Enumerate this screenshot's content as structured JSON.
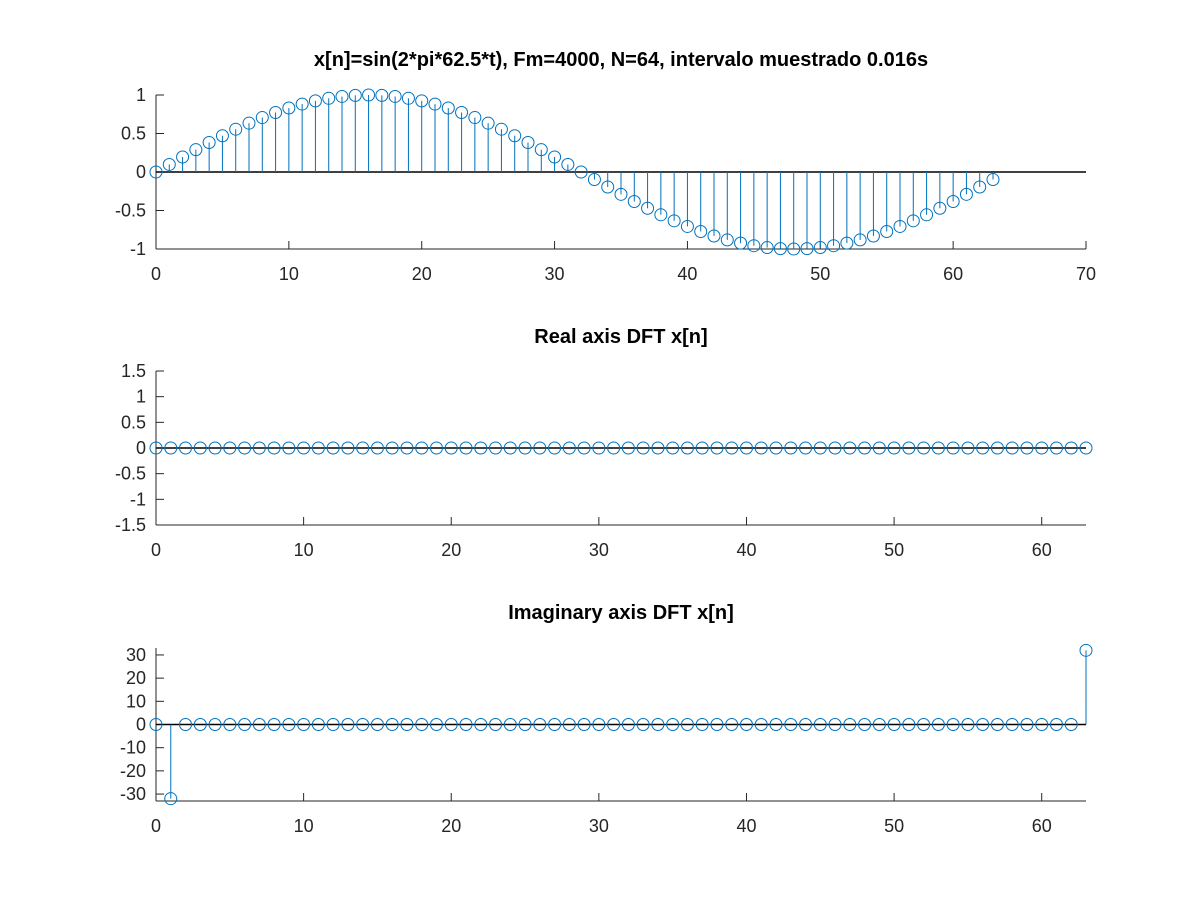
{
  "chart_data": [
    {
      "type": "stem",
      "title": "x[n]=sin(2*pi*62.5*t), Fm=4000, N=64, intervalo muestrado 0.016s",
      "xlabel": "",
      "ylabel": "",
      "xlim": [
        0,
        70
      ],
      "ylim": [
        -1,
        1
      ],
      "xticks": [
        0,
        10,
        20,
        30,
        40,
        50,
        60,
        70
      ],
      "yticks": [
        -1,
        -0.5,
        0,
        0.5,
        1
      ],
      "grid": false,
      "color": "#0072bd",
      "series": [
        {
          "x": [
            0,
            1,
            2,
            3,
            4,
            5,
            6,
            7,
            8,
            9,
            10,
            11,
            12,
            13,
            14,
            15,
            16,
            17,
            18,
            19,
            20,
            21,
            22,
            23,
            24,
            25,
            26,
            27,
            28,
            29,
            30,
            31,
            32,
            33,
            34,
            35,
            36,
            37,
            38,
            39,
            40,
            41,
            42,
            43,
            44,
            45,
            46,
            47,
            48,
            49,
            50,
            51,
            52,
            53,
            54,
            55,
            56,
            57,
            58,
            59,
            60,
            61,
            62,
            63
          ],
          "values": [
            0,
            0.098,
            0.195,
            0.29,
            0.383,
            0.471,
            0.556,
            0.634,
            0.707,
            0.773,
            0.831,
            0.882,
            0.924,
            0.957,
            0.981,
            0.995,
            1,
            0.995,
            0.981,
            0.957,
            0.924,
            0.882,
            0.831,
            0.773,
            0.707,
            0.634,
            0.556,
            0.471,
            0.383,
            0.29,
            0.195,
            0.098,
            0,
            -0.098,
            -0.195,
            -0.29,
            -0.383,
            -0.471,
            -0.556,
            -0.634,
            -0.707,
            -0.773,
            -0.831,
            -0.882,
            -0.924,
            -0.957,
            -0.981,
            -0.995,
            -1,
            -0.995,
            -0.981,
            -0.957,
            -0.924,
            -0.882,
            -0.831,
            -0.773,
            -0.707,
            -0.634,
            -0.556,
            -0.471,
            -0.383,
            -0.29,
            -0.195,
            -0.098
          ]
        }
      ]
    },
    {
      "type": "stem",
      "title": "Real axis DFT x[n]",
      "xlabel": "",
      "ylabel": "",
      "xlim": [
        0,
        63
      ],
      "ylim": [
        -1.5,
        1.5
      ],
      "xticks": [
        0,
        10,
        20,
        30,
        40,
        50,
        60
      ],
      "yticks": [
        -1.5,
        -1,
        -0.5,
        0,
        0.5,
        1,
        1.5
      ],
      "grid": false,
      "color": "#0072bd",
      "series": [
        {
          "x": [
            0,
            1,
            2,
            3,
            4,
            5,
            6,
            7,
            8,
            9,
            10,
            11,
            12,
            13,
            14,
            15,
            16,
            17,
            18,
            19,
            20,
            21,
            22,
            23,
            24,
            25,
            26,
            27,
            28,
            29,
            30,
            31,
            32,
            33,
            34,
            35,
            36,
            37,
            38,
            39,
            40,
            41,
            42,
            43,
            44,
            45,
            46,
            47,
            48,
            49,
            50,
            51,
            52,
            53,
            54,
            55,
            56,
            57,
            58,
            59,
            60,
            61,
            62,
            63
          ],
          "values": [
            0,
            0,
            0,
            0,
            0,
            0,
            0,
            0,
            0,
            0,
            0,
            0,
            0,
            0,
            0,
            0,
            0,
            0,
            0,
            0,
            0,
            0,
            0,
            0,
            0,
            0,
            0,
            0,
            0,
            0,
            0,
            0,
            0,
            0,
            0,
            0,
            0,
            0,
            0,
            0,
            0,
            0,
            0,
            0,
            0,
            0,
            0,
            0,
            0,
            0,
            0,
            0,
            0,
            0,
            0,
            0,
            0,
            0,
            0,
            0,
            0,
            0,
            0,
            0
          ]
        }
      ]
    },
    {
      "type": "stem",
      "title": "Imaginary axis DFT x[n]",
      "xlabel": "",
      "ylabel": "",
      "xlim": [
        0,
        63
      ],
      "ylim": [
        -33,
        33
      ],
      "xticks": [
        0,
        10,
        20,
        30,
        40,
        50,
        60
      ],
      "yticks": [
        -30,
        -20,
        -10,
        0,
        10,
        20,
        30
      ],
      "grid": false,
      "color": "#0072bd",
      "series": [
        {
          "x": [
            0,
            1,
            2,
            3,
            4,
            5,
            6,
            7,
            8,
            9,
            10,
            11,
            12,
            13,
            14,
            15,
            16,
            17,
            18,
            19,
            20,
            21,
            22,
            23,
            24,
            25,
            26,
            27,
            28,
            29,
            30,
            31,
            32,
            33,
            34,
            35,
            36,
            37,
            38,
            39,
            40,
            41,
            42,
            43,
            44,
            45,
            46,
            47,
            48,
            49,
            50,
            51,
            52,
            53,
            54,
            55,
            56,
            57,
            58,
            59,
            60,
            61,
            62,
            63
          ],
          "values": [
            0,
            -32,
            0,
            0,
            0,
            0,
            0,
            0,
            0,
            0,
            0,
            0,
            0,
            0,
            0,
            0,
            0,
            0,
            0,
            0,
            0,
            0,
            0,
            0,
            0,
            0,
            0,
            0,
            0,
            0,
            0,
            0,
            0,
            0,
            0,
            0,
            0,
            0,
            0,
            0,
            0,
            0,
            0,
            0,
            0,
            0,
            0,
            0,
            0,
            0,
            0,
            0,
            0,
            0,
            0,
            0,
            0,
            0,
            0,
            0,
            0,
            0,
            0,
            32
          ]
        }
      ]
    }
  ]
}
